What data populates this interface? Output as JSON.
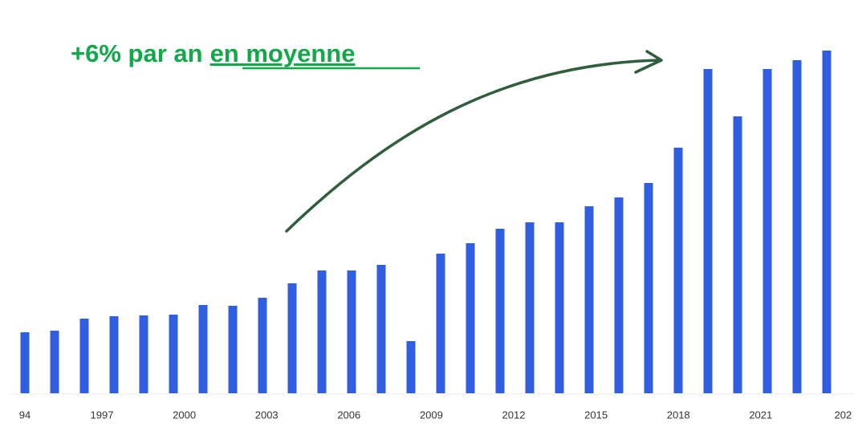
{
  "chart_data": {
    "type": "bar",
    "annotation": "+6% par an",
    "annotation_underlined": "en moyenne",
    "color": "#2f5fe0",
    "values": [
      76,
      78,
      93,
      96,
      97,
      98,
      110,
      109,
      119,
      137,
      153,
      153,
      160,
      65,
      174,
      187,
      205,
      213,
      213,
      233,
      244,
      262,
      306,
      404,
      345,
      404,
      415,
      427
    ],
    "xticks": [
      "94",
      "1997",
      "2000",
      "2003",
      "2006",
      "2009",
      "2012",
      "2015",
      "2018",
      "2021",
      "202"
    ]
  }
}
